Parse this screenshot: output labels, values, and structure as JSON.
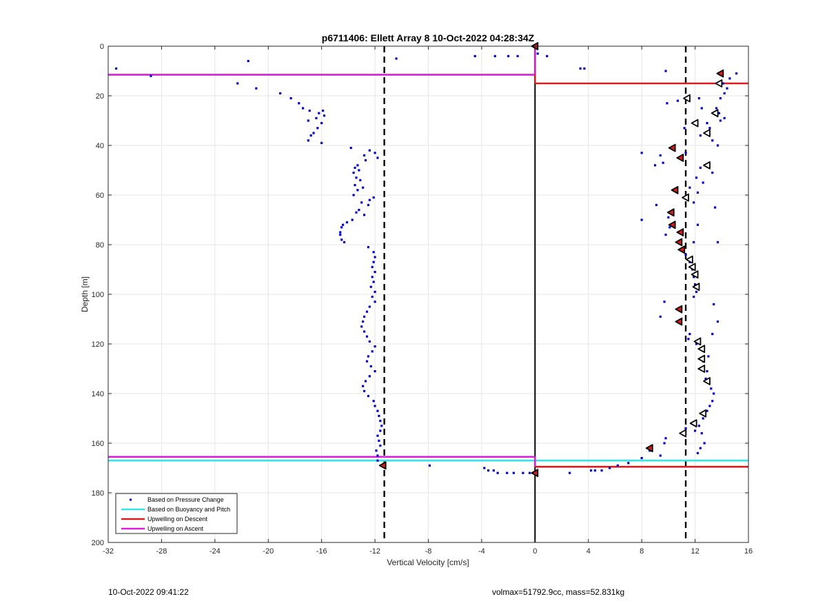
{
  "chart_data": {
    "type": "scatter",
    "title": "p6711406: Ellett Array 8 10-Oct-2022 04:28:34Z",
    "xlabel": "Vertical Velocity [cm/s]",
    "ylabel": "Depth [m]",
    "xlim": [
      -32,
      16
    ],
    "ylim": [
      0,
      200
    ],
    "y_reversed": true,
    "grid": true,
    "legend_placement": "bottom-left",
    "x_ticks": [
      -32,
      -28,
      -24,
      -20,
      -16,
      -12,
      -8,
      -4,
      0,
      4,
      8,
      12,
      16
    ],
    "y_ticks": [
      0,
      20,
      40,
      60,
      80,
      100,
      120,
      140,
      160,
      180,
      200
    ],
    "colors": {
      "pressure": "#0000cc",
      "buoyancy": "#33e6e6",
      "descent": "#d81b1b",
      "ascent": "#d61fd6",
      "reference": "#000000"
    },
    "legend": [
      {
        "label": "Based on Pressure Change",
        "key": "pressure"
      },
      {
        "label": "Based on Buoyancy and Pitch",
        "key": "buoyancy"
      },
      {
        "label": "Upwelling on Descent",
        "key": "descent"
      },
      {
        "label": "Upwelling on Ascent",
        "key": "ascent"
      }
    ],
    "reference_lines": {
      "dashed_x": [
        -11.3,
        11.3
      ],
      "solid_x": [
        0
      ]
    },
    "pressure_points": [
      [
        -31.4,
        9
      ],
      [
        -28.8,
        12
      ],
      [
        -21.5,
        6
      ],
      [
        -22.3,
        15
      ],
      [
        -20.9,
        17
      ],
      [
        -19.1,
        19
      ],
      [
        -18.3,
        21
      ],
      [
        -17.7,
        23
      ],
      [
        -17.4,
        25
      ],
      [
        -16.9,
        26
      ],
      [
        -16.2,
        27
      ],
      [
        -15.9,
        26
      ],
      [
        -15.8,
        28
      ],
      [
        -16.4,
        29
      ],
      [
        -16.0,
        31
      ],
      [
        -17.0,
        30
      ],
      [
        -16.3,
        33
      ],
      [
        -16.6,
        35
      ],
      [
        -16.8,
        36
      ],
      [
        -17.0,
        38
      ],
      [
        -16.0,
        39
      ],
      [
        -13.8,
        41
      ],
      [
        -12.4,
        42
      ],
      [
        -12.0,
        43
      ],
      [
        -12.8,
        44
      ],
      [
        -11.8,
        45
      ],
      [
        -12.7,
        46
      ],
      [
        -13.3,
        48
      ],
      [
        -13.5,
        49
      ],
      [
        -13.2,
        50
      ],
      [
        -13.6,
        51
      ],
      [
        -13.4,
        53
      ],
      [
        -13.1,
        54
      ],
      [
        -13.5,
        56
      ],
      [
        -12.9,
        57
      ],
      [
        -13.3,
        58
      ],
      [
        -13.6,
        60
      ],
      [
        -12.1,
        61
      ],
      [
        -12.4,
        62
      ],
      [
        -13.0,
        63
      ],
      [
        -12.5,
        64
      ],
      [
        -13.2,
        66
      ],
      [
        -13.4,
        67
      ],
      [
        -12.8,
        68
      ],
      [
        -13.7,
        70
      ],
      [
        -14.1,
        71
      ],
      [
        -14.4,
        72
      ],
      [
        -14.5,
        73
      ],
      [
        -14.6,
        75
      ],
      [
        -14.6,
        76
      ],
      [
        -14.5,
        78
      ],
      [
        -14.3,
        79
      ],
      [
        -12.5,
        81
      ],
      [
        -12.1,
        83
      ],
      [
        -12.0,
        85
      ],
      [
        -12.1,
        87
      ],
      [
        -12.2,
        89
      ],
      [
        -12.0,
        91
      ],
      [
        -12.2,
        93
      ],
      [
        -12.1,
        95
      ],
      [
        -12.3,
        97
      ],
      [
        -12.0,
        99
      ],
      [
        -12.2,
        101
      ],
      [
        -12.0,
        103
      ],
      [
        -12.4,
        105
      ],
      [
        -12.6,
        107
      ],
      [
        -12.8,
        109
      ],
      [
        -12.9,
        111
      ],
      [
        -13.0,
        113
      ],
      [
        -12.8,
        115
      ],
      [
        -12.6,
        117
      ],
      [
        -12.4,
        119
      ],
      [
        -12.0,
        121
      ],
      [
        -12.2,
        123
      ],
      [
        -12.5,
        125
      ],
      [
        -12.6,
        127
      ],
      [
        -12.3,
        129
      ],
      [
        -12.0,
        131
      ],
      [
        -12.4,
        133
      ],
      [
        -12.7,
        135
      ],
      [
        -12.9,
        137
      ],
      [
        -12.8,
        139
      ],
      [
        -12.5,
        141
      ],
      [
        -12.1,
        143
      ],
      [
        -12.0,
        145
      ],
      [
        -11.8,
        147
      ],
      [
        -11.7,
        149
      ],
      [
        -11.6,
        151
      ],
      [
        -11.5,
        153
      ],
      [
        -11.6,
        155
      ],
      [
        -11.8,
        157
      ],
      [
        -11.7,
        159
      ],
      [
        -11.6,
        161
      ],
      [
        -11.9,
        163
      ],
      [
        -11.8,
        165
      ],
      [
        -11.8,
        167
      ],
      [
        -11.5,
        169
      ],
      [
        -10.4,
        5
      ],
      [
        -4.5,
        4
      ],
      [
        -3.0,
        4
      ],
      [
        -2.0,
        4
      ],
      [
        -1.3,
        4
      ],
      [
        0.2,
        3
      ],
      [
        0.9,
        4
      ],
      [
        3.4,
        9
      ],
      [
        3.7,
        9
      ],
      [
        9.8,
        10
      ],
      [
        15.1,
        11
      ],
      [
        14.6,
        13
      ],
      [
        14.1,
        15
      ],
      [
        14.4,
        17
      ],
      [
        14.2,
        19
      ],
      [
        13.9,
        21
      ],
      [
        12.3,
        21
      ],
      [
        9.9,
        23
      ],
      [
        10.7,
        22
      ],
      [
        13.6,
        25
      ],
      [
        12.5,
        25
      ],
      [
        13.8,
        27
      ],
      [
        14.2,
        29
      ],
      [
        13.9,
        30
      ],
      [
        12.9,
        31
      ],
      [
        11.2,
        33
      ],
      [
        13.1,
        33
      ],
      [
        12.4,
        36
      ],
      [
        13.3,
        38
      ],
      [
        13.7,
        40
      ],
      [
        11.3,
        43
      ],
      [
        8.0,
        43
      ],
      [
        9.4,
        44
      ],
      [
        9.6,
        47
      ],
      [
        9.0,
        48
      ],
      [
        12.4,
        49
      ],
      [
        13.3,
        51
      ],
      [
        12.1,
        53
      ],
      [
        12.6,
        55
      ],
      [
        11.6,
        57
      ],
      [
        12.2,
        59
      ],
      [
        11.9,
        63
      ],
      [
        9.1,
        64
      ],
      [
        13.5,
        65
      ],
      [
        10.0,
        69
      ],
      [
        8.0,
        70
      ],
      [
        10.1,
        73
      ],
      [
        12.2,
        72
      ],
      [
        9.8,
        76
      ],
      [
        11.9,
        79
      ],
      [
        13.7,
        79
      ],
      [
        11.0,
        82
      ],
      [
        11.3,
        84
      ],
      [
        11.6,
        87
      ],
      [
        11.8,
        90
      ],
      [
        11.9,
        93
      ],
      [
        12.0,
        96
      ],
      [
        12.1,
        99
      ],
      [
        11.9,
        101
      ],
      [
        9.7,
        103
      ],
      [
        13.4,
        104
      ],
      [
        9.4,
        109
      ],
      [
        13.7,
        111
      ],
      [
        11.6,
        116
      ],
      [
        13.3,
        116
      ],
      [
        11.5,
        118
      ],
      [
        12.1,
        120
      ],
      [
        13.0,
        125
      ],
      [
        12.6,
        127
      ],
      [
        12.9,
        131
      ],
      [
        12.8,
        134
      ],
      [
        13.2,
        138
      ],
      [
        13.4,
        140
      ],
      [
        13.3,
        143
      ],
      [
        13.1,
        145
      ],
      [
        12.9,
        147
      ],
      [
        12.6,
        150
      ],
      [
        12.3,
        153
      ],
      [
        12.0,
        155
      ],
      [
        11.3,
        154
      ],
      [
        12.5,
        156
      ],
      [
        9.8,
        158
      ],
      [
        12.7,
        160
      ],
      [
        9.7,
        160
      ],
      [
        12.4,
        162
      ],
      [
        8.6,
        163
      ],
      [
        12.2,
        164
      ],
      [
        8.0,
        166
      ],
      [
        9.4,
        165
      ],
      [
        7.0,
        168
      ],
      [
        6.2,
        169
      ],
      [
        5.6,
        170
      ],
      [
        5.0,
        171
      ],
      [
        4.5,
        171
      ],
      [
        4.2,
        171
      ],
      [
        2.6,
        172
      ],
      [
        -3.8,
        170
      ],
      [
        -3.5,
        171
      ],
      [
        -3.1,
        171
      ],
      [
        -2.8,
        172
      ],
      [
        -2.1,
        172
      ],
      [
        -1.6,
        172
      ],
      [
        -0.9,
        172
      ],
      [
        -0.4,
        172
      ],
      [
        0.0,
        172
      ],
      [
        -7.9,
        169
      ]
    ],
    "red_markers": [
      [
        13.9,
        11
      ],
      [
        10.3,
        41
      ],
      [
        10.9,
        45
      ],
      [
        10.5,
        58
      ],
      [
        10.2,
        67
      ],
      [
        10.3,
        72
      ],
      [
        10.9,
        75
      ],
      [
        10.8,
        79
      ],
      [
        11.0,
        82
      ],
      [
        10.8,
        106
      ],
      [
        10.8,
        111
      ],
      [
        8.6,
        162
      ],
      [
        -11.4,
        169
      ],
      [
        0.0,
        172
      ],
      [
        0.0,
        0
      ]
    ],
    "white_markers": [
      [
        13.8,
        15
      ],
      [
        11.4,
        21
      ],
      [
        12.0,
        31
      ],
      [
        13.5,
        27
      ],
      [
        12.9,
        35
      ],
      [
        12.9,
        48
      ],
      [
        11.3,
        61
      ],
      [
        11.6,
        86
      ],
      [
        11.8,
        89
      ],
      [
        12.0,
        92
      ],
      [
        12.1,
        97
      ],
      [
        12.2,
        119
      ],
      [
        12.5,
        122
      ],
      [
        12.5,
        126
      ],
      [
        12.5,
        130
      ],
      [
        12.9,
        135
      ],
      [
        12.6,
        148
      ],
      [
        11.9,
        152
      ],
      [
        11.1,
        156
      ]
    ],
    "horizontal_segments": [
      {
        "key": "ascent",
        "y": 11.5,
        "x": [
          -32,
          0
        ]
      },
      {
        "key": "descent",
        "y": 15,
        "x": [
          0,
          16
        ]
      },
      {
        "key": "ascent",
        "y": 165.5,
        "x": [
          -32,
          0
        ]
      },
      {
        "key": "buoyancy",
        "y": 167,
        "x": [
          -32,
          16
        ]
      },
      {
        "key": "descent",
        "y": 169.5,
        "x": [
          0,
          16
        ]
      }
    ],
    "vertical_segments": [
      {
        "key": "descent",
        "x": 0,
        "y": [
          0,
          15
        ]
      },
      {
        "key": "ascent",
        "x": 0,
        "y": [
          0,
          11.5
        ]
      },
      {
        "key": "ascent",
        "x": 0,
        "y": [
          165.5,
          169.5
        ]
      }
    ]
  },
  "footer": {
    "left": "10-Oct-2022 09:41:22",
    "right": "volmax=51792.9cc, mass=52.831kg"
  }
}
